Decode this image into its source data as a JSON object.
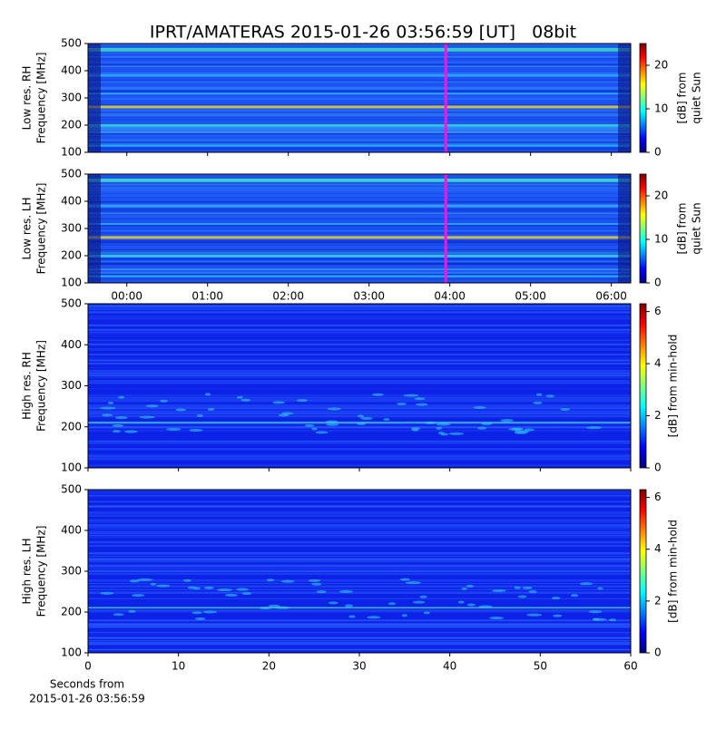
{
  "title": "IPRT/AMATERAS 2015-01-26 03:56:59 [UT]   08bit",
  "chart_data": [
    {
      "type": "heatmap",
      "ylabel": [
        "Low res. RH",
        "Frequency [MHz]"
      ],
      "ylim": [
        100,
        500
      ],
      "yticks": [
        100,
        200,
        300,
        400,
        500
      ],
      "xlim": [
        -0.48,
        6.24
      ],
      "sharex": true,
      "marker_x": 3.95,
      "marker_color": "#e020e0",
      "colorbar": {
        "label": [
          "[dB] from",
          "quiet Sun"
        ],
        "lim": [
          0,
          25
        ],
        "ticks": [
          0,
          10,
          20
        ]
      }
    },
    {
      "type": "heatmap",
      "ylabel": [
        "Low res. LH",
        "Frequency [MHz]"
      ],
      "ylim": [
        100,
        500
      ],
      "yticks": [
        100,
        200,
        300,
        400,
        500
      ],
      "xlim": [
        -0.48,
        6.24
      ],
      "marker_x": 3.95,
      "marker_color": "#e020e0",
      "xticks": [
        {
          "value": 0,
          "label": "00:00"
        },
        {
          "value": 1,
          "label": "01:00"
        },
        {
          "value": 2,
          "label": "02:00"
        },
        {
          "value": 3,
          "label": "03:00"
        },
        {
          "value": 4,
          "label": "04:00"
        },
        {
          "value": 5,
          "label": "05:00"
        },
        {
          "value": 6,
          "label": "06:00"
        }
      ],
      "colorbar": {
        "label": [
          "[dB] from",
          "quiet Sun"
        ],
        "lim": [
          0,
          25
        ],
        "ticks": [
          0,
          10,
          20
        ]
      }
    },
    {
      "type": "heatmap",
      "ylabel": [
        "High res. RH",
        "Frequency [MHz]"
      ],
      "ylim": [
        100,
        500
      ],
      "yticks": [
        100,
        200,
        300,
        400,
        500
      ],
      "xlim": [
        0,
        60
      ],
      "sharex": true,
      "colorbar": {
        "label": [
          "[dB] from min-hold"
        ],
        "lim": [
          0,
          6.3
        ],
        "ticks": [
          0,
          2,
          4,
          6
        ]
      }
    },
    {
      "type": "heatmap",
      "ylabel": [
        "High res. LH",
        "Frequency [MHz]"
      ],
      "ylim": [
        100,
        500
      ],
      "yticks": [
        100,
        200,
        300,
        400,
        500
      ],
      "xlim": [
        0,
        60
      ],
      "xticks": [
        0,
        10,
        20,
        30,
        40,
        50,
        60
      ],
      "xlabel": [
        "Seconds from",
        "2015-01-26 03:56:59"
      ],
      "colorbar": {
        "label": [
          "[dB] from min-hold"
        ],
        "lim": [
          0,
          6.3
        ],
        "ticks": [
          0,
          2,
          4,
          6
        ]
      }
    }
  ]
}
